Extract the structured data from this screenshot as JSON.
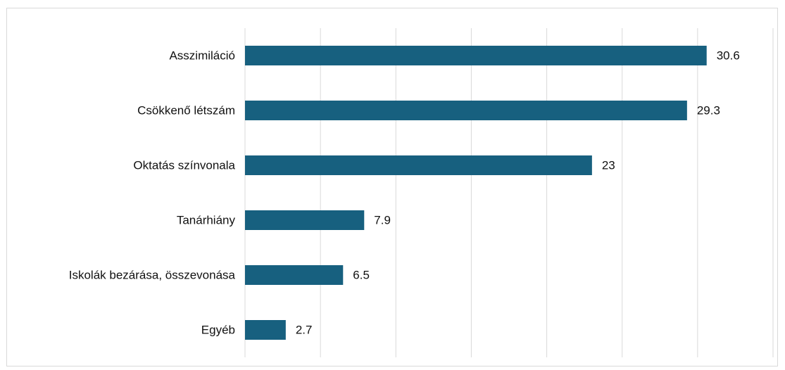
{
  "chart_data": {
    "type": "bar",
    "orientation": "horizontal",
    "categories": [
      "Asszimiláció",
      "Csökkenő létszám",
      "Oktatás színvonala",
      "Tanárhiány",
      "Iskolák bezárása, összevonása",
      "Egyéb"
    ],
    "values": [
      30.6,
      29.3,
      23,
      7.9,
      6.5,
      2.7
    ],
    "value_labels": [
      "30.6",
      "29.3",
      "23",
      "7.9",
      "6.5",
      "2.7"
    ],
    "xlim": [
      0,
      35
    ],
    "grid": true,
    "bar_color": "#17607f",
    "gridline_color": "#d9d9d9"
  }
}
